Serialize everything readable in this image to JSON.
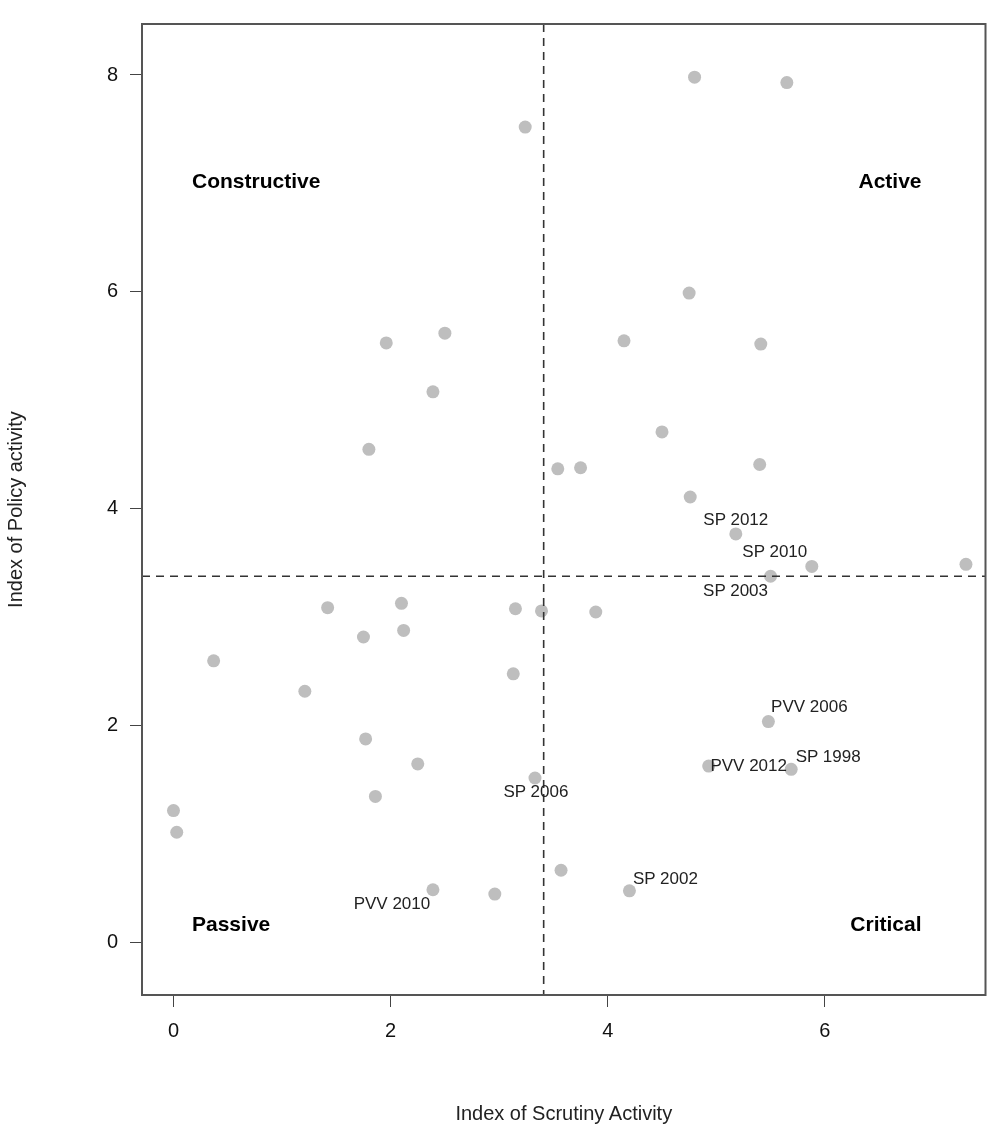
{
  "chart_data": {
    "type": "scatter",
    "xlabel": "Index of Scrutiny Activity",
    "ylabel": "Index of Policy activity",
    "xlim": [
      -0.29,
      7.48
    ],
    "ylim": [
      -0.48,
      8.47
    ],
    "xticks": [
      0,
      2,
      4,
      6
    ],
    "yticks": [
      0,
      2,
      4,
      6,
      8
    ],
    "grid": false,
    "legend": false,
    "marker": "circle",
    "series": [
      {
        "color": "#bebebe",
        "x": [
          3.24,
          2.5,
          1.96,
          2.39,
          1.8,
          3.54,
          4.8,
          5.65,
          4.75,
          4.15,
          5.41,
          4.5,
          3.75,
          5.4,
          4.76,
          1.42,
          2.1,
          3.15,
          3.39,
          1.75,
          2.12,
          0.37,
          1.21,
          3.13,
          1.77,
          2.25,
          1.86,
          3.33,
          0.0,
          0.03,
          3.57,
          2.39,
          2.96,
          5.18,
          5.88,
          5.5,
          7.3,
          3.89,
          5.48,
          4.93,
          5.69,
          4.2
        ],
        "values": [
          7.52,
          5.62,
          5.53,
          5.08,
          4.55,
          4.37,
          7.98,
          7.93,
          5.99,
          5.55,
          5.52,
          4.71,
          4.38,
          4.41,
          4.11,
          3.09,
          3.13,
          3.08,
          3.06,
          2.82,
          2.88,
          2.6,
          2.32,
          2.48,
          1.88,
          1.65,
          1.35,
          1.52,
          1.22,
          1.02,
          0.67,
          0.49,
          0.45,
          3.77,
          3.47,
          3.38,
          3.49,
          3.05,
          2.04,
          1.63,
          1.6,
          0.48
        ]
      }
    ],
    "ref_lines": [
      {
        "axis": "x",
        "value": 3.41,
        "color": "#333333",
        "line_style": "dashed"
      },
      {
        "axis": "y",
        "value": 3.38,
        "color": "#333333",
        "line_style": "dashed"
      }
    ],
    "annotations": [
      "Constructive",
      "Active",
      "Passive",
      "Critical",
      {
        "text": "SP 2012",
        "x": 5.18,
        "y": 3.77
      },
      {
        "text": "SP 2010",
        "x": 5.88,
        "y": 3.47
      },
      {
        "text": "SP 2003",
        "x": 5.5,
        "y": 3.38
      },
      {
        "text": "PVV 2006",
        "x": 5.48,
        "y": 2.04
      },
      {
        "text": "PVV 2012",
        "x": 4.93,
        "y": 1.63
      },
      {
        "text": "SP 1998",
        "x": 5.69,
        "y": 1.6
      },
      {
        "text": "SP 2002",
        "x": 4.2,
        "y": 0.48
      },
      {
        "text": "SP 2006",
        "x": 3.33,
        "y": 1.52
      },
      {
        "text": "PVV 2010",
        "x": 2.39,
        "y": 0.49
      }
    ]
  }
}
